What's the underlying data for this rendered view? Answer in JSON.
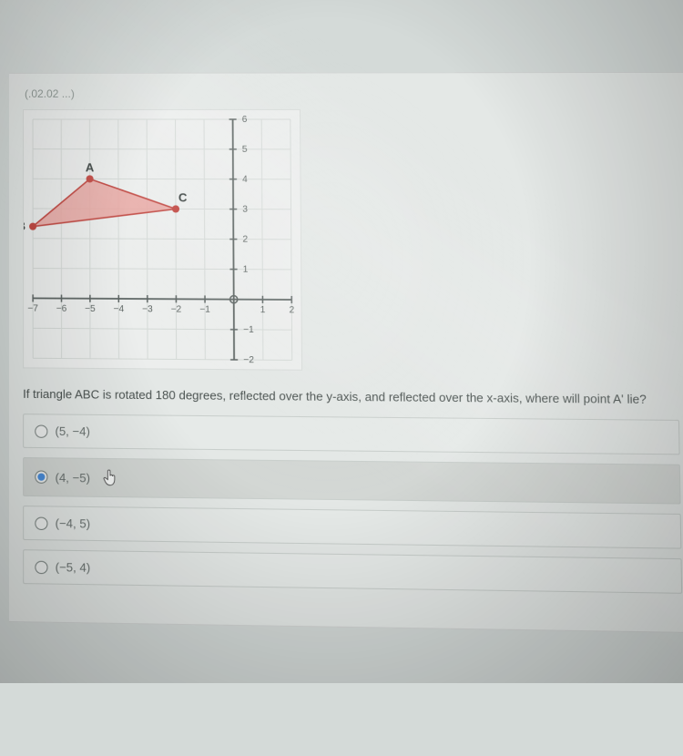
{
  "header_code": "(.02.02 ...)",
  "graph": {
    "type": "triangle-on-grid",
    "background_color": "#eceeed",
    "grid_color": "#d5dad7",
    "axis_color": "#5e6664",
    "tick_fontsize": 10,
    "xlim": [
      -7,
      2
    ],
    "ylim": [
      -2,
      6
    ],
    "xticks": [
      -7,
      -6,
      -5,
      -4,
      -3,
      -2,
      -1,
      1,
      2
    ],
    "yticks": [
      -2,
      -1,
      1,
      2,
      3,
      4,
      5,
      6
    ],
    "points": {
      "A": {
        "x": -5,
        "y": 4,
        "label": "A"
      },
      "B": {
        "x": -7,
        "y": 2.4,
        "label": "B"
      },
      "C": {
        "x": -2,
        "y": 3,
        "label": "C"
      }
    },
    "fill_color": "#e9a6a1",
    "fill_opacity": 0.85,
    "stroke_color": "#c24a44",
    "point_color": "#c24a44",
    "point_radius": 4
  },
  "question_text": "If triangle ABC is rotated 180 degrees, reflected over the y-axis, and reflected over the x-axis, where will point A' lie?",
  "options": [
    {
      "label": "(5, −4)",
      "selected": false
    },
    {
      "label": "(4, −5)",
      "selected": true,
      "has_cursor": true
    },
    {
      "label": "(−4, 5)",
      "selected": false
    },
    {
      "label": "(−5, 4)",
      "selected": false
    }
  ],
  "colors": {
    "page_bg": "#d4dad8",
    "panel_bg": "#e4e8e6",
    "option_bg": "#e6eae8",
    "option_selected_bg": "#d3d7d4",
    "option_border": "#c9cfcc",
    "text": "#4a5250",
    "muted": "#6a7270",
    "radio_dot": "#4b8edb"
  }
}
